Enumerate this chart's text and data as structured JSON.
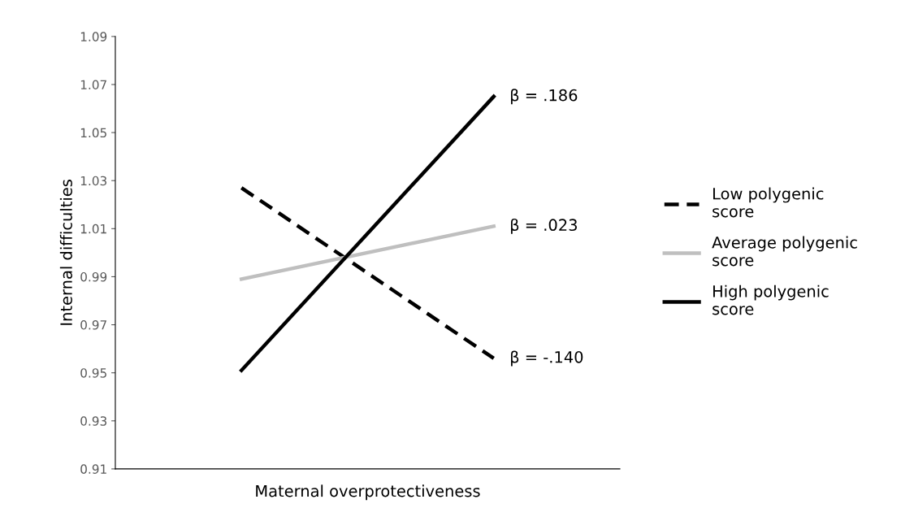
{
  "chart_data": {
    "type": "line",
    "xlabel": "Maternal overprotectiveness",
    "ylabel": "Internal difficulties",
    "categories": [
      null,
      null
    ],
    "series": [
      {
        "name": "Low polygenic score",
        "color": "#000000",
        "line_style": "dashed",
        "values": [
          1.027,
          0.956
        ]
      },
      {
        "name": "Average polygenic score",
        "color": "#bfbfbf",
        "line_style": "solid",
        "values": [
          0.989,
          1.011
        ]
      },
      {
        "name": "High polygenic score",
        "color": "#000000",
        "line_style": "solid",
        "values": [
          0.951,
          1.065
        ]
      }
    ],
    "annotations": [
      "β = -.140",
      "β = .023",
      "β = .186"
    ],
    "ylim": [
      0.91,
      1.09
    ],
    "yticks": [
      {
        "value": 0.91,
        "label": "0.91"
      },
      {
        "value": 0.93,
        "label": "0.93"
      },
      {
        "value": 0.95,
        "label": "0.95"
      },
      {
        "value": 0.97,
        "label": "0.97"
      },
      {
        "value": 0.99,
        "label": "0.99"
      },
      {
        "value": 1.01,
        "label": "1.01"
      },
      {
        "value": 1.03,
        "label": "1.03"
      },
      {
        "value": 1.05,
        "label": "1.05"
      },
      {
        "value": 1.07,
        "label": "1.07"
      },
      {
        "value": 1.09,
        "label": "1.09"
      }
    ],
    "tick_labels": "y",
    "grid": false,
    "legend": "right",
    "marker": "none"
  }
}
